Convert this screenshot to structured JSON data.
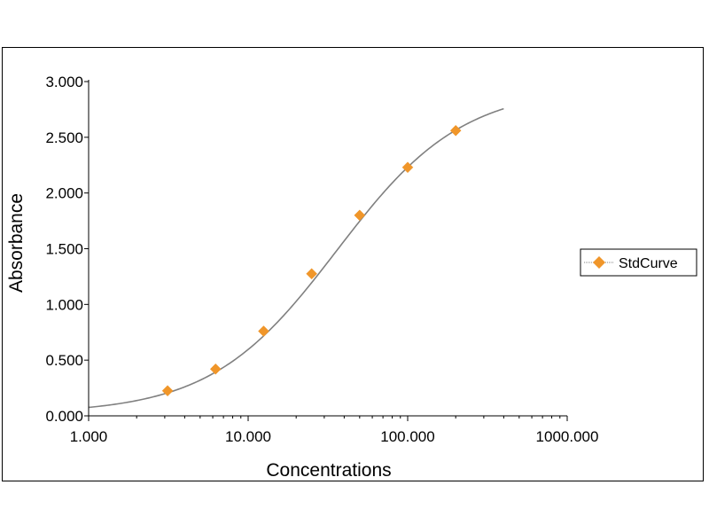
{
  "chart_data": {
    "type": "scatter",
    "xlabel": "Concentrations",
    "ylabel": "Absorbance",
    "x_scale": "log",
    "xlim": [
      1,
      1000
    ],
    "ylim": [
      0,
      3
    ],
    "x_ticks": [
      1,
      10,
      100,
      1000
    ],
    "x_tick_labels": [
      "1.000",
      "10.000",
      "100.000",
      "1000.000"
    ],
    "y_ticks": [
      0,
      0.5,
      1,
      1.5,
      2,
      2.5,
      3
    ],
    "y_tick_labels": [
      "0.000",
      "0.500",
      "1.000",
      "1.500",
      "2.000",
      "2.500",
      "3.000"
    ],
    "grid": false,
    "legend_position": "right",
    "series": [
      {
        "name": "StdCurve",
        "marker": "diamond",
        "color": "#F0962A",
        "x": [
          3.125,
          6.25,
          12.5,
          25,
          50,
          100,
          200
        ],
        "y": [
          0.225,
          0.42,
          0.76,
          1.275,
          1.8,
          2.23,
          2.56
        ]
      }
    ],
    "fit_curve": {
      "model": "4PL",
      "min": 0.02,
      "max": 2.95,
      "ec50": 36,
      "slope": 1.1,
      "x_range": [
        1,
        400
      ],
      "color": "#808080"
    }
  }
}
